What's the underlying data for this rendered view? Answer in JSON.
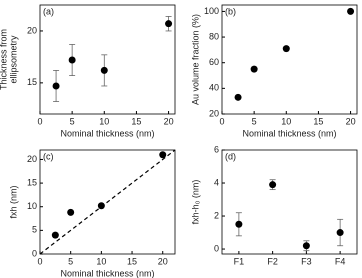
{
  "chart_data": [
    {
      "type": "scatter",
      "panel_label": "(a)",
      "xlabel": "Nominal thickness (nm)",
      "ylabel": [
        "Thickness from",
        "ellipsometry"
      ],
      "x": [
        2.5,
        5,
        10,
        20
      ],
      "values": [
        14.7,
        17.2,
        16.2,
        20.7
      ],
      "errors": [
        1.5,
        1.5,
        1.5,
        0.7
      ],
      "xlim": [
        0,
        21
      ],
      "ylim": [
        12,
        22.5
      ],
      "xticks": [
        0,
        5,
        10,
        15,
        20
      ],
      "yticks": [
        15,
        20
      ],
      "color": "#000000"
    },
    {
      "type": "scatter",
      "panel_label": "(b)",
      "xlabel": "Nominal thickness (nm)",
      "ylabel": [
        "Au volume fraction (%)"
      ],
      "x": [
        2.5,
        5,
        10,
        20
      ],
      "values": [
        33,
        55,
        71,
        100
      ],
      "xlim": [
        0,
        21
      ],
      "ylim": [
        20,
        105
      ],
      "xticks": [
        0,
        5,
        10,
        15,
        20
      ],
      "yticks": [
        20,
        40,
        60,
        80,
        100
      ],
      "color": "#000000"
    },
    {
      "type": "scatter",
      "panel_label": "(c)",
      "xlabel": "Nominal thickness (nm)",
      "ylabel": [
        "fxh (nm)"
      ],
      "x": [
        2.5,
        5,
        10,
        20
      ],
      "values": [
        4,
        8.8,
        10.2,
        21
      ],
      "xlim": [
        0,
        22
      ],
      "ylim": [
        0,
        22
      ],
      "xticks": [
        0,
        5,
        10,
        15,
        20
      ],
      "yticks": [
        0,
        5,
        10,
        15,
        20
      ],
      "color": "#000000",
      "diagonal": true
    },
    {
      "type": "category-scatter",
      "panel_label": "(d)",
      "ylabel": [
        "fxh-h₀ (nm)"
      ],
      "categories": [
        "F1",
        "F2",
        "F3",
        "F4"
      ],
      "values": [
        1.5,
        3.9,
        0.2,
        1.0
      ],
      "errors": [
        0.7,
        0.3,
        0.3,
        0.8
      ],
      "ylim": [
        -0.3,
        6
      ],
      "yticks": [
        0,
        2,
        4,
        6
      ],
      "color": "#000000"
    }
  ]
}
